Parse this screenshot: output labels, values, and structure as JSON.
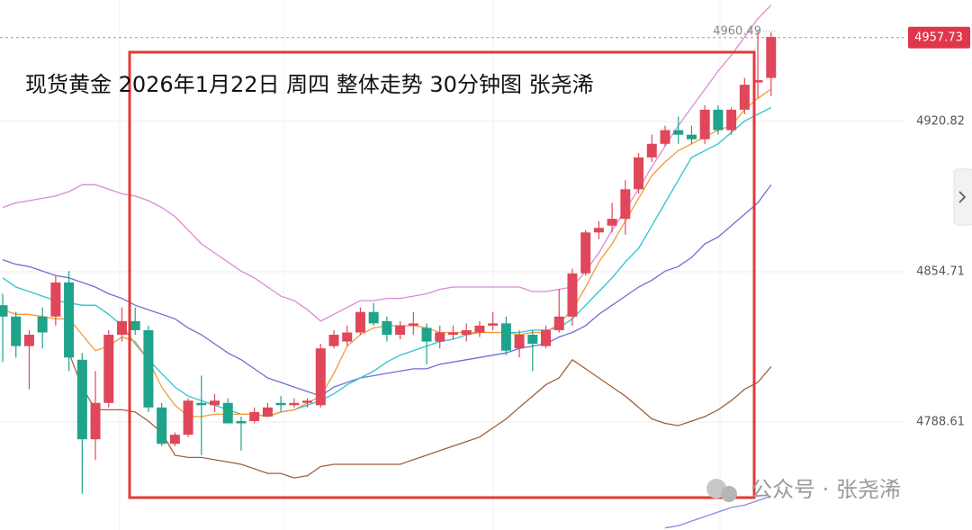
{
  "chart_data": {
    "type": "candlestick",
    "title": "现货黄金 2026年1月22日 周四 整体走势 30分钟图 张尧浠",
    "ylim": [
      4741.09,
      4974.27
    ],
    "yticks": [
      4788.61,
      4854.71,
      4920.82
    ],
    "grid": true,
    "up_color": "#e0475a",
    "down_color": "#1fa38a",
    "open": [
      4840,
      4835,
      4822,
      4835,
      4835,
      4850,
      4816,
      4781,
      4797,
      4827,
      4833,
      4829,
      4795,
      4779,
      4783,
      4797,
      4796,
      4797,
      4789,
      4789,
      4791,
      4797,
      4796,
      4797,
      4796,
      4822,
      4824,
      4828,
      4837,
      4833,
      4827,
      4831,
      4830,
      4824,
      4827,
      4827,
      4828,
      4831,
      4832,
      4821,
      4827,
      4822,
      4829,
      4835,
      4854,
      4872,
      4875,
      4878,
      4891,
      4905,
      4911,
      4917,
      4915,
      4913,
      4926,
      4917,
      4926,
      4938,
      4940
    ],
    "high": [
      4845,
      4837,
      4829,
      4839,
      4853,
      4855,
      4819,
      4811,
      4829,
      4839,
      4839,
      4831,
      4797,
      4784,
      4799,
      4809,
      4801,
      4799,
      4791,
      4795,
      4797,
      4800,
      4799,
      4799,
      4823,
      4829,
      4831,
      4839,
      4841,
      4835,
      4833,
      4837,
      4832,
      4831,
      4831,
      4832,
      4833,
      4837,
      4835,
      4829,
      4829,
      4831,
      4847,
      4856,
      4873,
      4877,
      4885,
      4895,
      4907,
      4915,
      4919,
      4923,
      4919,
      4928,
      4928,
      4927,
      4940,
      4961,
      4960
    ],
    "low": [
      4815,
      4817,
      4803,
      4821,
      4831,
      4811,
      4757,
      4772,
      4795,
      4824,
      4827,
      4793,
      4778,
      4778,
      4782,
      4774,
      4793,
      4788,
      4776,
      4788,
      4791,
      4793,
      4795,
      4795,
      4795,
      4821,
      4822,
      4827,
      4831,
      4824,
      4825,
      4827,
      4814,
      4821,
      4825,
      4824,
      4826,
      4829,
      4818,
      4817,
      4811,
      4821,
      4828,
      4831,
      4853,
      4869,
      4872,
      4871,
      4889,
      4903,
      4910,
      4911,
      4911,
      4911,
      4915,
      4915,
      4924,
      4931,
      4932
    ],
    "close": [
      4835,
      4822,
      4827,
      4828,
      4850,
      4817,
      4781,
      4797,
      4827,
      4833,
      4829,
      4795,
      4779,
      4783,
      4798,
      4796,
      4798,
      4788,
      4788,
      4793,
      4795,
      4796,
      4797,
      4798,
      4821,
      4827,
      4828,
      4837,
      4832,
      4827,
      4831,
      4832,
      4824,
      4828,
      4828,
      4829,
      4831,
      4832,
      4820,
      4827,
      4823,
      4829,
      4835,
      4854,
      4872,
      4874,
      4878,
      4891,
      4905,
      4911,
      4917,
      4915,
      4913,
      4926,
      4917,
      4926,
      4937,
      4939,
      4958
    ],
    "lines": [
      {
        "color": "#d98ad4",
        "values": [
          4883,
          4885,
          4886,
          4887,
          4888,
          4890,
          4893,
          4893,
          4891,
          4889,
          4888,
          4886,
          4883,
          4879,
          4873,
          4867,
          4863,
          4859,
          4855,
          4852,
          4848,
          4844,
          4842,
          4838,
          4833,
          4836,
          4839,
          4842,
          4842,
          4843,
          4843,
          4844,
          4845,
          4847,
          4848,
          4848,
          4848,
          4848,
          4848,
          4848,
          4846,
          4846,
          4847,
          4848,
          4855,
          4863,
          4873,
          4882,
          4891,
          4901,
          4910,
          4919,
          4927,
          4935,
          4943,
          4950,
          4958,
          4966,
          4972
        ]
      },
      {
        "color": "#a0623a",
        "values": [
          null,
          null,
          null,
          null,
          null,
          4819,
          4804,
          4794,
          4794,
          4794,
          4793,
          4789,
          4784,
          4774,
          4773,
          4773,
          4772,
          4771,
          4770,
          4768,
          4766,
          4766,
          4764,
          4765,
          4769,
          4770,
          4770,
          4770,
          4770,
          4770,
          4770,
          4772,
          4774,
          4776,
          4778,
          4780,
          4782,
          4786,
          4790,
          4795,
          4800,
          4805,
          4808,
          4816,
          4812,
          4808,
          4804,
          4800,
          4795,
          4790,
          4788,
          4787,
          4789,
          4791,
          4794,
          4798,
          4803,
          4806,
          4813
        ]
      },
      {
        "color": "#6f6fd6",
        "values": [
          4860,
          4858,
          4857,
          4855,
          4853,
          4852,
          4850,
          4848,
          4845,
          4843,
          4840,
          4838,
          4836,
          4834,
          4830,
          4827,
          4823,
          4819,
          4816,
          4812,
          4808,
          4806,
          4804,
          4802,
          4800,
          4804,
          4806,
          4808,
          4809,
          4810,
          4811,
          4812,
          4812,
          4814,
          4815,
          4816,
          4817,
          4818,
          4819,
          4821,
          4822,
          4823,
          4826,
          4828,
          4831,
          4836,
          4840,
          4844,
          4848,
          4851,
          4855,
          4857,
          4861,
          4867,
          4870,
          4875,
          4880,
          4885,
          4893
        ]
      },
      {
        "color": "#2ec4cf",
        "values": [
          4852,
          4848,
          4846,
          4844,
          4842,
          4841,
          4840,
          4840,
          4836,
          4831,
          4823,
          4816,
          4810,
          4804,
          4800,
          4798,
          4796,
          4794,
          4792,
          4792,
          4791,
          4793,
          4794,
          4796,
          4798,
          4801,
          4805,
          4808,
          4811,
          4815,
          4818,
          4820,
          4822,
          4824,
          4825,
          4827,
          4828,
          4828,
          4828,
          4828,
          4829,
          4829,
          4830,
          4834,
          4840,
          4846,
          4852,
          4859,
          4865,
          4875,
          4885,
          4895,
          4905,
          4908,
          4911,
          4916,
          4921,
          4924,
          4927
        ]
      },
      {
        "color": "#f29a3c",
        "values": [
          4838,
          4836,
          4836,
          4835,
          4834,
          4834,
          4827,
          4820,
          4822,
          4826,
          4824,
          4816,
          4804,
          4796,
          4791,
          4791,
          4792,
          4792,
          4792,
          4792,
          4791,
          4793,
          4794,
          4797,
          4800,
          4810,
          4822,
          4827,
          4830,
          4831,
          4831,
          4831,
          4830,
          4828,
          4828,
          4828,
          4828,
          4828,
          4828,
          4827,
          4828,
          4828,
          4832,
          4838,
          4848,
          4859,
          4867,
          4877,
          4887,
          4897,
          4903,
          4908,
          4911,
          4914,
          4917,
          4919,
          4926,
          4931,
          4935
        ]
      },
      {
        "color": "#8f86e0",
        "values": [
          null,
          null,
          null,
          null,
          null,
          null,
          null,
          null,
          null,
          null,
          null,
          null,
          null,
          null,
          null,
          null,
          null,
          null,
          null,
          null,
          null,
          null,
          null,
          null,
          null,
          null,
          null,
          null,
          null,
          null,
          null,
          null,
          null,
          null,
          null,
          null,
          null,
          null,
          null,
          null,
          null,
          null,
          null,
          null,
          null,
          null,
          null,
          null,
          null,
          null,
          4742,
          4743,
          4745,
          4747,
          4749,
          4751,
          4752,
          4754,
          4756
        ]
      }
    ],
    "last_price": 4957.73,
    "high_label": 4960.49,
    "watermark": "公众号 · 张尧浠"
  }
}
